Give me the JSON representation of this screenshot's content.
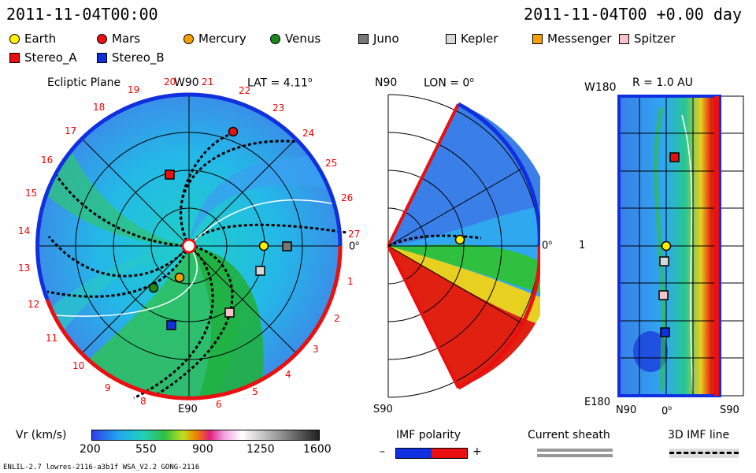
{
  "header": {
    "left": "2011-11-04T00:00",
    "right": "2011-11-04T00 +0.00 day"
  },
  "legend": [
    {
      "label": "Earth",
      "color": "#ffee00",
      "shape": "circle"
    },
    {
      "label": "Mars",
      "color": "#e81010",
      "shape": "circle"
    },
    {
      "label": "Mercury",
      "color": "#f5a000",
      "shape": "circle"
    },
    {
      "label": "Venus",
      "color": "#1a8a1a",
      "shape": "circle"
    },
    {
      "label": "Juno",
      "color": "#777777",
      "shape": "square"
    },
    {
      "label": "Kepler",
      "color": "#d8d8d8",
      "shape": "square"
    },
    {
      "label": "Messenger",
      "color": "#f5a000",
      "shape": "square"
    },
    {
      "label": "Spitzer",
      "color": "#f7c2c8",
      "shape": "square"
    },
    {
      "label": "Stereo_A",
      "color": "#e81010",
      "shape": "square"
    },
    {
      "label": "Stereo_B",
      "color": "#1030e0",
      "shape": "square"
    }
  ],
  "ecliptic": {
    "title": "Ecliptic Plane",
    "top_label": "W90",
    "lat_label": "LAT = 4.11",
    "deg": "o",
    "bottom_label": "E90",
    "right_label": "0",
    "numbers": [
      "1",
      "2",
      "3",
      "4",
      "5",
      "6",
      "8",
      "9",
      "10",
      "11",
      "12",
      "13",
      "14",
      "15",
      "16",
      "17",
      "18",
      "19",
      "20",
      "21",
      "22",
      "23",
      "24",
      "25",
      "26",
      "27"
    ]
  },
  "meridional": {
    "top_label": "N90",
    "title": "LON = 0",
    "deg": "o",
    "bottom_label": "S90",
    "right_label": "0"
  },
  "radial": {
    "title": "R = 1.0 AU",
    "top_left": "W180",
    "mid_left": "1",
    "bottom_left": "E180",
    "bx_left": "N90",
    "bx_mid": "0",
    "bx_right": "S90",
    "deg": "o"
  },
  "colorbar": {
    "label": "Vr (km/s)",
    "ticks": [
      "200",
      "550",
      "900",
      "1250",
      "1600"
    ]
  },
  "imf": {
    "label": "IMF polarity",
    "minus": "–",
    "plus": "+"
  },
  "sheath": {
    "label": "Current sheath"
  },
  "imfline": {
    "label": "3D IMF line"
  },
  "footer": "ENLIL-2.7 lowres-2116-a3b1f WSA_V2.2 GONG-2116",
  "colors": {
    "slow": "#2fa8f0",
    "fast": "#e81010",
    "pos": "#e81010",
    "neg": "#1030e0"
  }
}
